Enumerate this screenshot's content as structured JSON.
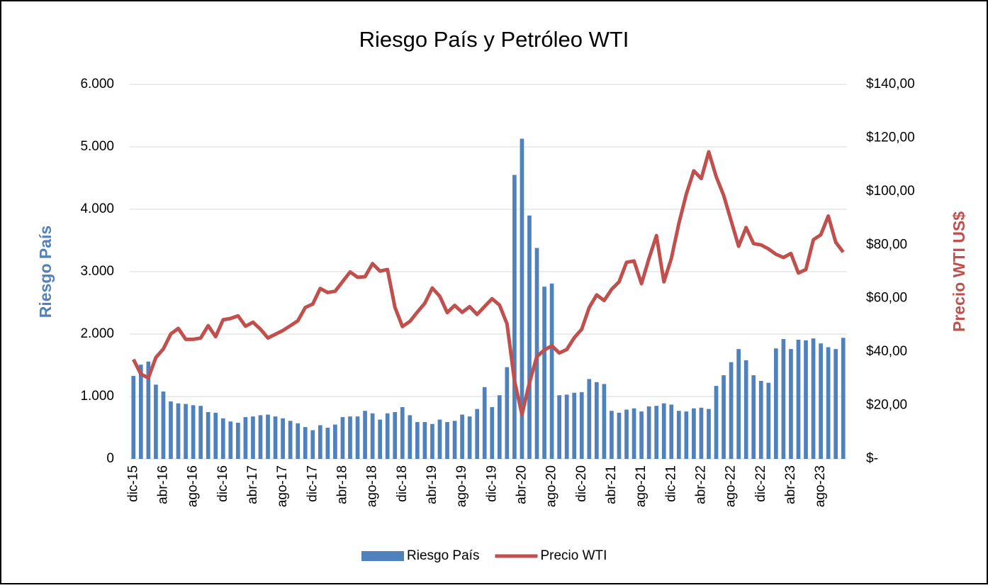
{
  "chart_data": {
    "type": "bar",
    "title": "Riesgo País y Petróleo WTI",
    "ylabel": "Riesgo País",
    "y2label": "Precio WTI US$",
    "categories": [
      "dic-15",
      null,
      null,
      null,
      "abr-16",
      null,
      null,
      null,
      "ago-16",
      null,
      null,
      null,
      "dic-16",
      null,
      null,
      null,
      "abr-17",
      null,
      null,
      null,
      "ago-17",
      null,
      null,
      null,
      "dic-17",
      null,
      null,
      null,
      "abr-18",
      null,
      null,
      null,
      "ago-18",
      null,
      null,
      null,
      "dic-18",
      null,
      null,
      null,
      "abr-19",
      null,
      null,
      null,
      "ago-19",
      null,
      null,
      null,
      "dic-19",
      null,
      null,
      null,
      "abr-20",
      null,
      null,
      null,
      "ago-20",
      null,
      null,
      null,
      "dic-20",
      null,
      null,
      null,
      "abr-21",
      null,
      null,
      null,
      "ago-21",
      null,
      null,
      null,
      "dic-21",
      null,
      null,
      null,
      "abr-22",
      null,
      null,
      null,
      "ago-22",
      null,
      null,
      null,
      "dic-22",
      null,
      null,
      null,
      "abr-23",
      null,
      null,
      null,
      "ago-23",
      null,
      null,
      null
    ],
    "series": [
      {
        "name": "Riesgo País",
        "type": "bar",
        "color": "#4f81bd",
        "values": [
          1330,
          1510,
          1560,
          1190,
          1080,
          920,
          890,
          880,
          860,
          850,
          750,
          740,
          650,
          600,
          580,
          670,
          680,
          700,
          710,
          680,
          650,
          610,
          570,
          510,
          460,
          540,
          500,
          550,
          670,
          680,
          680,
          770,
          730,
          630,
          730,
          750,
          830,
          700,
          590,
          590,
          560,
          630,
          590,
          610,
          710,
          680,
          800,
          1150,
          830,
          1020,
          1470,
          4550,
          5130,
          3900,
          3380,
          2760,
          2810,
          1020,
          1030,
          1060,
          1070,
          1280,
          1230,
          1200,
          770,
          740,
          790,
          810,
          760,
          840,
          850,
          890,
          870,
          770,
          760,
          810,
          820,
          800,
          1170,
          1340,
          1550,
          1760,
          1580,
          1340,
          1250,
          1220,
          1770,
          1920,
          1760,
          1910,
          1900,
          1930,
          1850,
          1790,
          1760,
          1940
        ]
      },
      {
        "name": "Precio WTI",
        "type": "line",
        "axis": "y2",
        "color": "#c0504d",
        "values": [
          37.2,
          31.7,
          30.3,
          37.9,
          41.1,
          46.7,
          48.8,
          44.7,
          44.7,
          45.2,
          49.8,
          45.7,
          52.0,
          52.5,
          53.5,
          49.6,
          51.1,
          48.5,
          45.2,
          46.6,
          48.0,
          49.8,
          51.6,
          56.6,
          57.9,
          63.7,
          62.2,
          62.7,
          66.3,
          69.9,
          67.9,
          68.1,
          73.0,
          70.2,
          70.8,
          56.7,
          49.5,
          51.4,
          54.9,
          58.2,
          63.9,
          60.8,
          54.7,
          57.4,
          54.8,
          56.9,
          54.0,
          57.0,
          59.9,
          57.5,
          50.5,
          29.2,
          16.6,
          28.5,
          38.3,
          40.7,
          42.3,
          39.6,
          40.9,
          45.3,
          48.5,
          56.6,
          61.3,
          59.2,
          63.4,
          66.2,
          73.5,
          74.0,
          65.5,
          74.9,
          83.5,
          66.2,
          75.0,
          88.0,
          99.0,
          107.7,
          104.8,
          114.8,
          105.5,
          98.5,
          89.0,
          79.5,
          86.5,
          80.5,
          80.0,
          78.5,
          76.5,
          75.3,
          76.8,
          69.5,
          70.8,
          81.9,
          83.8,
          90.8,
          81.0,
          77.3
        ]
      }
    ],
    "ylim": [
      0,
      6000
    ],
    "yticks": [
      0,
      {
        "value": 1000,
        "label": "1.000"
      },
      {
        "value": 2000,
        "label": "2.000"
      },
      {
        "value": 3000,
        "label": "3.000"
      },
      {
        "value": 4000,
        "label": "4.000"
      },
      {
        "value": 5000,
        "label": "5.000"
      },
      {
        "value": 6000,
        "label": "6.000"
      }
    ],
    "y2lim": [
      0,
      140
    ],
    "y2ticks": [
      {
        "value": 0,
        "label": "$-"
      },
      {
        "value": 20,
        "label": "$20,00"
      },
      {
        "value": 40,
        "label": "$40,00"
      },
      {
        "value": 60,
        "label": "$60,00"
      },
      {
        "value": 80,
        "label": "$80,00"
      },
      {
        "value": 100,
        "label": "$100,00"
      },
      {
        "value": 120,
        "label": "$120,00"
      },
      {
        "value": 140,
        "label": "$140,00"
      }
    ],
    "grid": true,
    "legend": "bottom"
  }
}
